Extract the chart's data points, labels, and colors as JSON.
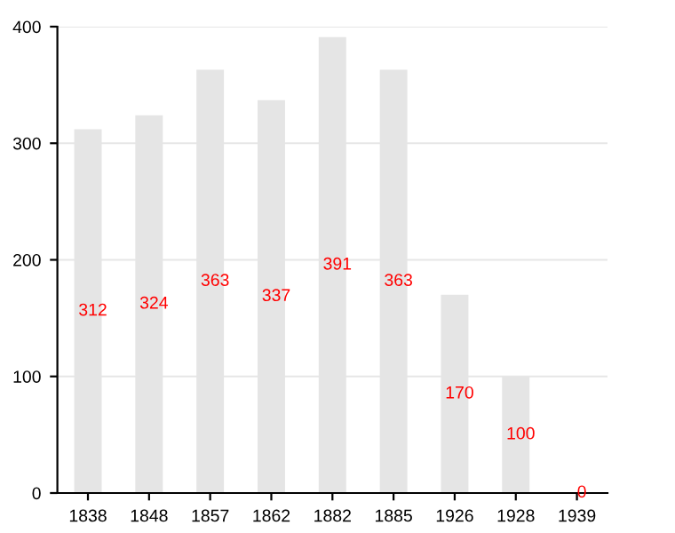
{
  "chart_data": {
    "type": "bar",
    "categories": [
      "1838",
      "1848",
      "1857",
      "1862",
      "1882",
      "1885",
      "1926",
      "1928",
      "1939"
    ],
    "values": [
      312,
      324,
      363,
      337,
      391,
      363,
      170,
      100,
      0
    ],
    "color": "#e5e5e5",
    "ylim": [
      0,
      400
    ],
    "yticks": [
      0,
      100,
      200,
      300,
      400
    ],
    "grid": "y",
    "data_labels": true
  }
}
